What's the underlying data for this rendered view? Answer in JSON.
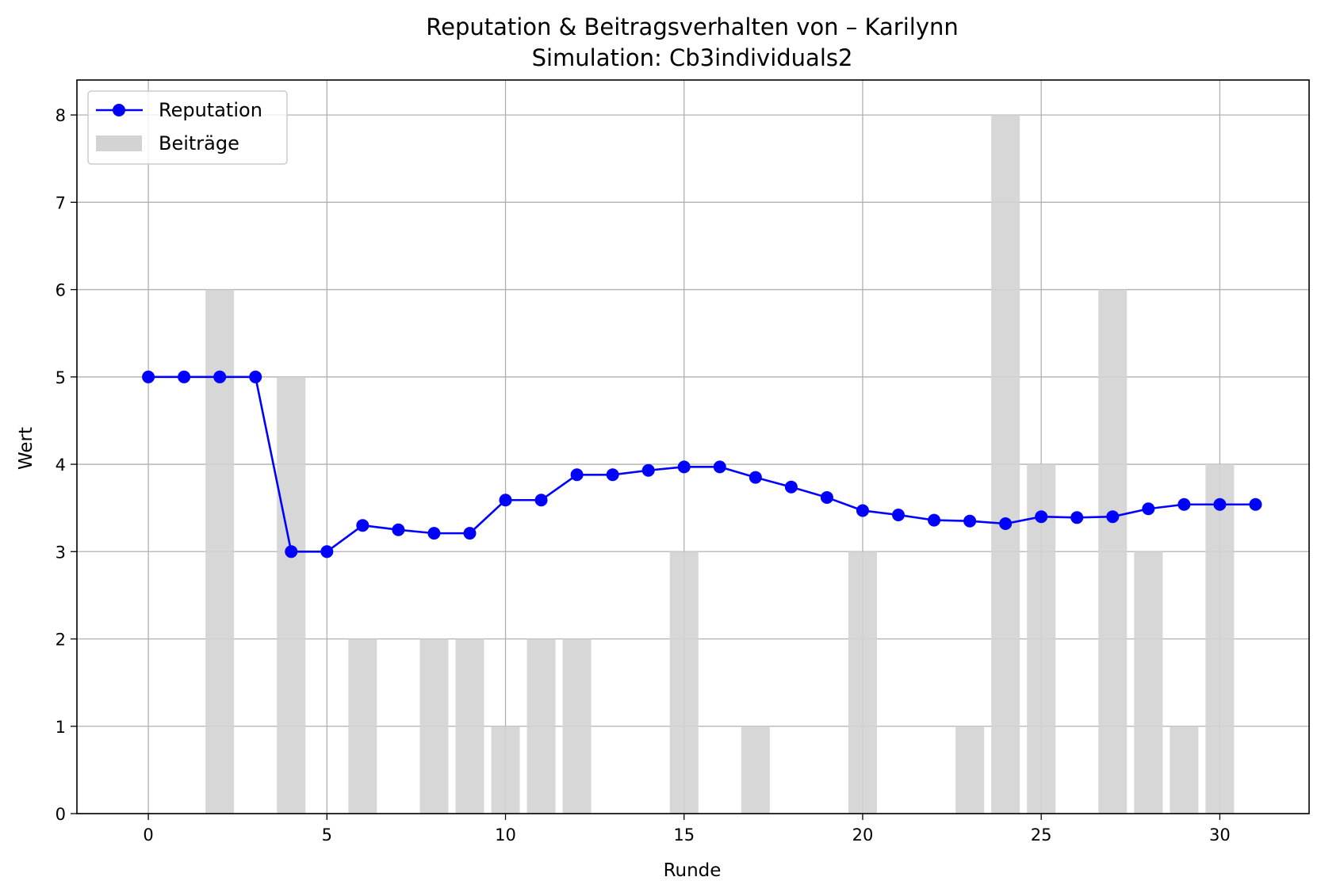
{
  "chart_data": {
    "type": "line",
    "title": "Reputation & Beitragsverhalten von – Karilynn",
    "subtitle": "Simulation: Cb3individuals2",
    "xlabel": "Runde",
    "ylabel": "Wert",
    "xlim": [
      -2,
      32.5
    ],
    "ylim": [
      0,
      8.4
    ],
    "x_ticks": [
      0,
      5,
      10,
      15,
      20,
      25,
      30
    ],
    "y_ticks": [
      0,
      1,
      2,
      3,
      4,
      5,
      6,
      7,
      8
    ],
    "grid": true,
    "legend_position": "top-left",
    "series": [
      {
        "name": "Reputation",
        "type": "line",
        "color": "#0000ff",
        "marker": "circle",
        "x": [
          0,
          1,
          2,
          3,
          4,
          5,
          6,
          7,
          8,
          9,
          10,
          11,
          12,
          13,
          14,
          15,
          16,
          17,
          18,
          19,
          20,
          21,
          22,
          23,
          24,
          25,
          26,
          27,
          28,
          29,
          30,
          31
        ],
        "values": [
          5.0,
          5.0,
          5.0,
          5.0,
          3.0,
          3.0,
          3.3,
          3.25,
          3.21,
          3.21,
          3.59,
          3.59,
          3.88,
          3.88,
          3.93,
          3.97,
          3.97,
          3.85,
          3.74,
          3.62,
          3.47,
          3.42,
          3.36,
          3.35,
          3.32,
          3.4,
          3.39,
          3.4,
          3.49,
          3.54,
          3.54,
          3.54
        ]
      },
      {
        "name": "Beiträge",
        "type": "bar",
        "color": "#d3d3d3",
        "x": [
          0,
          1,
          2,
          3,
          4,
          5,
          6,
          7,
          8,
          9,
          10,
          11,
          12,
          13,
          14,
          15,
          16,
          17,
          18,
          19,
          20,
          21,
          22,
          23,
          24,
          25,
          26,
          27,
          28,
          29,
          30,
          31
        ],
        "values": [
          0,
          0,
          6,
          0,
          5,
          0,
          2,
          0,
          2,
          2,
          1,
          2,
          2,
          0,
          0,
          3,
          0,
          1,
          0,
          0,
          3,
          0,
          0,
          1,
          8,
          4,
          0,
          6,
          3,
          1,
          4,
          0
        ]
      }
    ]
  }
}
